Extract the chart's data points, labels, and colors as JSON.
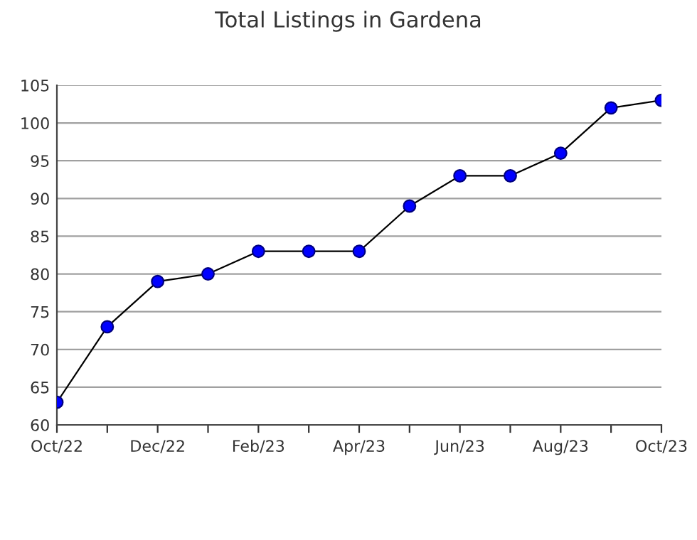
{
  "chart_data": {
    "type": "line",
    "title": "Total Listings in Gardena",
    "categories": [
      "Oct/22",
      null,
      "Dec/22",
      null,
      "Feb/23",
      null,
      "Apr/23",
      null,
      "Jun/23",
      null,
      "Aug/23",
      null,
      "Oct/23"
    ],
    "series": [
      {
        "color": "#0000ff",
        "values": [
          63,
          73,
          79,
          80,
          83,
          83,
          83,
          89,
          93,
          93,
          96,
          102,
          103
        ]
      }
    ],
    "ylim": [
      60,
      105
    ],
    "yticks": [
      60,
      65,
      70,
      75,
      80,
      85,
      90,
      95,
      100,
      105
    ],
    "grid": "y",
    "marker": "circle",
    "line_style": "solid",
    "legend": false
  }
}
